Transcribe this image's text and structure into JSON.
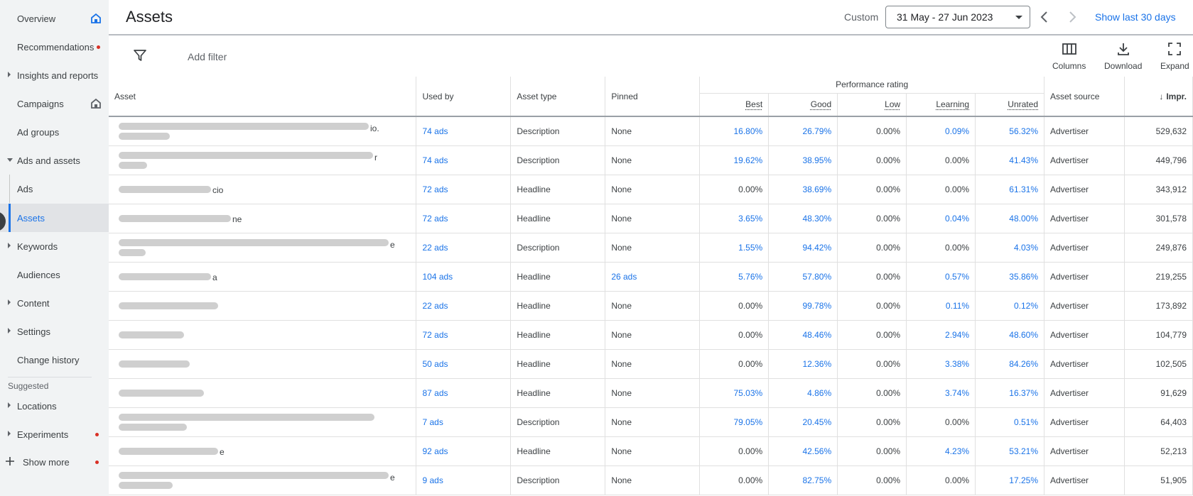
{
  "sidebar": {
    "items": [
      {
        "label": "Overview"
      },
      {
        "label": "Recommendations"
      },
      {
        "label": "Insights and reports"
      },
      {
        "label": "Campaigns"
      },
      {
        "label": "Ad groups"
      },
      {
        "label": "Ads and assets"
      },
      {
        "label": "Ads"
      },
      {
        "label": "Assets"
      },
      {
        "label": "Keywords"
      },
      {
        "label": "Audiences"
      },
      {
        "label": "Content"
      },
      {
        "label": "Settings"
      },
      {
        "label": "Change history"
      }
    ],
    "suggested_label": "Suggested",
    "suggested_items": [
      {
        "label": "Locations"
      },
      {
        "label": "Experiments"
      }
    ],
    "show_more": "Show more"
  },
  "header": {
    "title": "Assets",
    "custom_label": "Custom",
    "date_range": "31 May - 27 Jun 2023",
    "show_last": "Show last 30 days"
  },
  "toolbar": {
    "add_filter": "Add filter",
    "columns": "Columns",
    "download": "Download",
    "expand": "Expand"
  },
  "table": {
    "headers": {
      "asset": "Asset",
      "used_by": "Used by",
      "asset_type": "Asset type",
      "pinned": "Pinned",
      "performance_rating": "Performance rating",
      "best": "Best",
      "good": "Good",
      "low": "Low",
      "learning": "Learning",
      "unrated": "Unrated",
      "asset_source": "Asset source",
      "impr": "Impr."
    },
    "rows": [
      {
        "tail": "io.",
        "used_by": "74 ads",
        "type": "Description",
        "pinned": "None",
        "best": "16.80%",
        "good": "26.79%",
        "low": "0.00%",
        "learning": "0.09%",
        "unrated": "56.32%",
        "source": "Advertiser",
        "impr": "529,632"
      },
      {
        "tail": "r",
        "used_by": "74 ads",
        "type": "Description",
        "pinned": "None",
        "best": "19.62%",
        "good": "38.95%",
        "low": "0.00%",
        "learning": "0.00%",
        "unrated": "41.43%",
        "source": "Advertiser",
        "impr": "449,796"
      },
      {
        "tail": "cio",
        "used_by": "72 ads",
        "type": "Headline",
        "pinned": "None",
        "best": "0.00%",
        "good": "38.69%",
        "low": "0.00%",
        "learning": "0.00%",
        "unrated": "61.31%",
        "source": "Advertiser",
        "impr": "343,912"
      },
      {
        "tail": "ne",
        "used_by": "72 ads",
        "type": "Headline",
        "pinned": "None",
        "best": "3.65%",
        "good": "48.30%",
        "low": "0.00%",
        "learning": "0.04%",
        "unrated": "48.00%",
        "source": "Advertiser",
        "impr": "301,578"
      },
      {
        "tail": "e",
        "used_by": "22 ads",
        "type": "Description",
        "pinned": "None",
        "best": "1.55%",
        "good": "94.42%",
        "low": "0.00%",
        "learning": "0.00%",
        "unrated": "4.03%",
        "source": "Advertiser",
        "impr": "249,876"
      },
      {
        "tail": "a",
        "used_by": "104 ads",
        "type": "Headline",
        "pinned": "26 ads",
        "best": "5.76%",
        "good": "57.80%",
        "low": "0.00%",
        "learning": "0.57%",
        "unrated": "35.86%",
        "source": "Advertiser",
        "impr": "219,255"
      },
      {
        "tail": "",
        "used_by": "22 ads",
        "type": "Headline",
        "pinned": "None",
        "best": "0.00%",
        "good": "99.78%",
        "low": "0.00%",
        "learning": "0.11%",
        "unrated": "0.12%",
        "source": "Advertiser",
        "impr": "173,892"
      },
      {
        "tail": "",
        "used_by": "72 ads",
        "type": "Headline",
        "pinned": "None",
        "best": "0.00%",
        "good": "48.46%",
        "low": "0.00%",
        "learning": "2.94%",
        "unrated": "48.60%",
        "source": "Advertiser",
        "impr": "104,779"
      },
      {
        "tail": "",
        "used_by": "50 ads",
        "type": "Headline",
        "pinned": "None",
        "best": "0.00%",
        "good": "12.36%",
        "low": "0.00%",
        "learning": "3.38%",
        "unrated": "84.26%",
        "source": "Advertiser",
        "impr": "102,505"
      },
      {
        "tail": "",
        "used_by": "87 ads",
        "type": "Headline",
        "pinned": "None",
        "best": "75.03%",
        "good": "4.86%",
        "low": "0.00%",
        "learning": "3.74%",
        "unrated": "16.37%",
        "source": "Advertiser",
        "impr": "91,629"
      },
      {
        "tail": "",
        "used_by": "7 ads",
        "type": "Description",
        "pinned": "None",
        "best": "79.05%",
        "good": "20.45%",
        "low": "0.00%",
        "learning": "0.00%",
        "unrated": "0.51%",
        "source": "Advertiser",
        "impr": "64,403"
      },
      {
        "tail": "e",
        "used_by": "92 ads",
        "type": "Headline",
        "pinned": "None",
        "best": "0.00%",
        "good": "42.56%",
        "low": "0.00%",
        "learning": "4.23%",
        "unrated": "53.21%",
        "source": "Advertiser",
        "impr": "52,213"
      },
      {
        "tail": "e",
        "used_by": "9 ads",
        "type": "Description",
        "pinned": "None",
        "best": "0.00%",
        "good": "82.75%",
        "low": "0.00%",
        "learning": "0.00%",
        "unrated": "17.25%",
        "source": "Advertiser",
        "impr": "51,905"
      }
    ]
  },
  "colors": {
    "accent": "#1a73e8",
    "sidebar_bg": "#f1f3f4",
    "alert": "#d93025"
  }
}
